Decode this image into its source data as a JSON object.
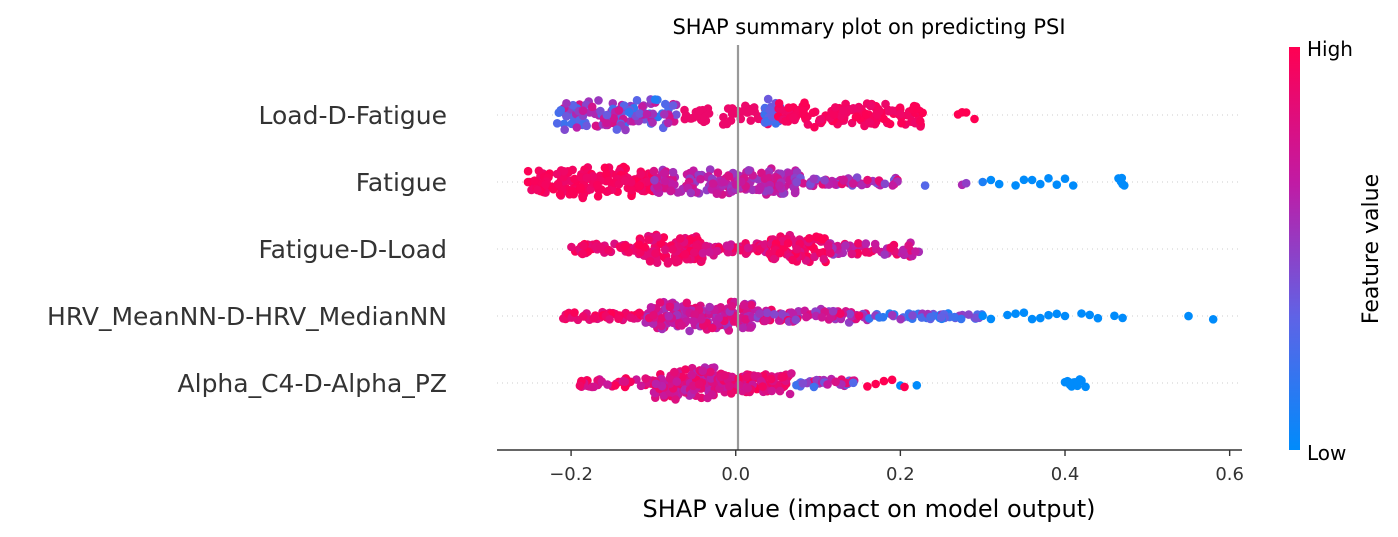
{
  "chart_data": {
    "type": "scatter",
    "subtype": "shap-beeswarm",
    "title": "SHAP summary plot on predicting PSI",
    "xlabel": "SHAP value (impact on model output)",
    "xlim": [
      -0.29,
      0.615
    ],
    "xticks": [
      -0.2,
      0.0,
      0.2,
      0.4,
      0.6
    ],
    "xtick_labels": [
      "−0.2",
      "0.0",
      "0.2",
      "0.4",
      "0.6"
    ],
    "zero_line": 0.0,
    "features": [
      {
        "name": "Load-D-Fatigue",
        "clusters": [
          {
            "range": [
              -0.22,
              -0.1
            ],
            "spread": 1.0,
            "color_mix": [
              0.8,
              0.2
            ],
            "n": 90
          },
          {
            "range": [
              -0.13,
              -0.07
            ],
            "spread": 1.0,
            "color_mix": [
              0.1,
              0.8
            ],
            "n": 35
          },
          {
            "range": [
              -0.07,
              0.04
            ],
            "spread": 0.6,
            "color_mix": [
              0.9,
              0.9
            ],
            "n": 45
          },
          {
            "range": [
              0.035,
              0.055
            ],
            "spread": 1.0,
            "color_mix": [
              0.2,
              0.45
            ],
            "n": 20
          },
          {
            "range": [
              0.05,
              0.23
            ],
            "spread": 0.8,
            "color_mix": [
              0.9,
              1.0
            ],
            "n": 150
          }
        ],
        "outliers": [
          [
            0.27,
            1.0
          ],
          [
            0.28,
            1.0
          ],
          [
            0.29,
            1.0
          ],
          [
            0.275,
            1.0
          ]
        ]
      },
      {
        "name": "Fatigue",
        "clusters": [
          {
            "range": [
              -0.255,
              -0.1
            ],
            "spread": 1.0,
            "color_mix": [
              0.9,
              1.0
            ],
            "n": 170
          },
          {
            "range": [
              -0.1,
              0.08
            ],
            "spread": 0.85,
            "color_mix": [
              0.5,
              0.8
            ],
            "n": 190
          },
          {
            "range": [
              0.07,
              0.2
            ],
            "spread": 0.3,
            "color_mix": [
              0.4,
              0.9
            ],
            "n": 55
          }
        ],
        "outliers": [
          [
            0.23,
            0.3
          ],
          [
            0.275,
            0.6
          ],
          [
            0.28,
            0.5
          ],
          [
            0.3,
            0.1
          ],
          [
            0.31,
            0.0
          ],
          [
            0.32,
            0.0
          ],
          [
            0.34,
            0.0
          ],
          [
            0.35,
            0.0
          ],
          [
            0.36,
            0.0
          ],
          [
            0.37,
            0.0
          ],
          [
            0.38,
            0.0
          ],
          [
            0.39,
            0.0
          ],
          [
            0.4,
            0.0
          ],
          [
            0.41,
            0.0
          ],
          [
            0.465,
            0.0
          ],
          [
            0.47,
            0.0
          ],
          [
            0.468,
            0.0
          ],
          [
            0.472,
            0.0
          ],
          [
            0.469,
            0.0
          ]
        ]
      },
      {
        "name": "Fatigue-D-Load",
        "clusters": [
          {
            "range": [
              -0.2,
              -0.12
            ],
            "spread": 0.35,
            "color_mix": [
              0.8,
              1.0
            ],
            "n": 55
          },
          {
            "range": [
              -0.12,
              -0.04
            ],
            "spread": 1.0,
            "color_mix": [
              0.8,
              1.0
            ],
            "n": 95
          },
          {
            "range": [
              -0.04,
              0.04
            ],
            "spread": 0.4,
            "color_mix": [
              0.7,
              1.0
            ],
            "n": 45
          },
          {
            "range": [
              0.04,
              0.11
            ],
            "spread": 1.0,
            "color_mix": [
              0.8,
              1.0
            ],
            "n": 85
          },
          {
            "range": [
              0.11,
              0.225
            ],
            "spread": 0.45,
            "color_mix": [
              0.5,
              1.0
            ],
            "n": 55
          }
        ],
        "outliers": []
      },
      {
        "name": "HRV_MeanNN-D-HRV_MedianNN",
        "clusters": [
          {
            "range": [
              -0.21,
              -0.11
            ],
            "spread": 0.3,
            "color_mix": [
              0.8,
              1.0
            ],
            "n": 55
          },
          {
            "range": [
              -0.11,
              0.02
            ],
            "spread": 1.0,
            "color_mix": [
              0.55,
              0.9
            ],
            "n": 170
          },
          {
            "range": [
              0.02,
              0.16
            ],
            "spread": 0.45,
            "color_mix": [
              0.45,
              0.95
            ],
            "n": 90
          },
          {
            "range": [
              0.16,
              0.3
            ],
            "spread": 0.2,
            "color_mix": [
              0.0,
              0.6
            ],
            "n": 50
          }
        ],
        "outliers": [
          [
            0.3,
            0.0
          ],
          [
            0.31,
            0.0
          ],
          [
            0.33,
            0.0
          ],
          [
            0.34,
            0.0
          ],
          [
            0.35,
            0.0
          ],
          [
            0.36,
            0.0
          ],
          [
            0.37,
            0.0
          ],
          [
            0.38,
            0.0
          ],
          [
            0.39,
            0.0
          ],
          [
            0.4,
            0.0
          ],
          [
            0.42,
            0.0
          ],
          [
            0.43,
            0.0
          ],
          [
            0.44,
            0.0
          ],
          [
            0.46,
            0.0
          ],
          [
            0.47,
            0.0
          ],
          [
            0.55,
            0.0
          ],
          [
            0.58,
            0.0
          ]
        ]
      },
      {
        "name": "Alpha_C4-D-Alpha_PZ",
        "clusters": [
          {
            "range": [
              -0.19,
              -0.1
            ],
            "spread": 0.3,
            "color_mix": [
              0.7,
              1.0
            ],
            "n": 40
          },
          {
            "range": [
              -0.1,
              -0.02
            ],
            "spread": 1.0,
            "color_mix": [
              0.6,
              0.95
            ],
            "n": 120
          },
          {
            "range": [
              -0.02,
              0.07
            ],
            "spread": 0.75,
            "color_mix": [
              0.7,
              1.0
            ],
            "n": 100
          },
          {
            "range": [
              0.07,
              0.145
            ],
            "spread": 0.25,
            "color_mix": [
              0.2,
              0.9
            ],
            "n": 40
          }
        ],
        "outliers": [
          [
            0.16,
            1.0
          ],
          [
            0.17,
            1.0
          ],
          [
            0.18,
            1.0
          ],
          [
            0.19,
            1.0
          ],
          [
            0.2,
            0.0
          ],
          [
            0.205,
            1.0
          ],
          [
            0.22,
            0.0
          ],
          [
            0.4,
            0.0
          ],
          [
            0.405,
            0.0
          ],
          [
            0.41,
            0.0
          ],
          [
            0.415,
            0.0
          ],
          [
            0.42,
            0.0
          ],
          [
            0.408,
            0.0
          ],
          [
            0.412,
            0.0
          ],
          [
            0.403,
            0.0
          ],
          [
            0.418,
            0.0
          ],
          [
            0.425,
            0.0
          ],
          [
            0.41,
            0.0
          ],
          [
            0.406,
            0.0
          ]
        ]
      }
    ],
    "colorbar": {
      "title": "Feature value",
      "high_label": "High",
      "low_label": "Low",
      "colors": [
        "#008bfb",
        "#5f63e6",
        "#c01ba5",
        "#ff0052"
      ]
    }
  }
}
